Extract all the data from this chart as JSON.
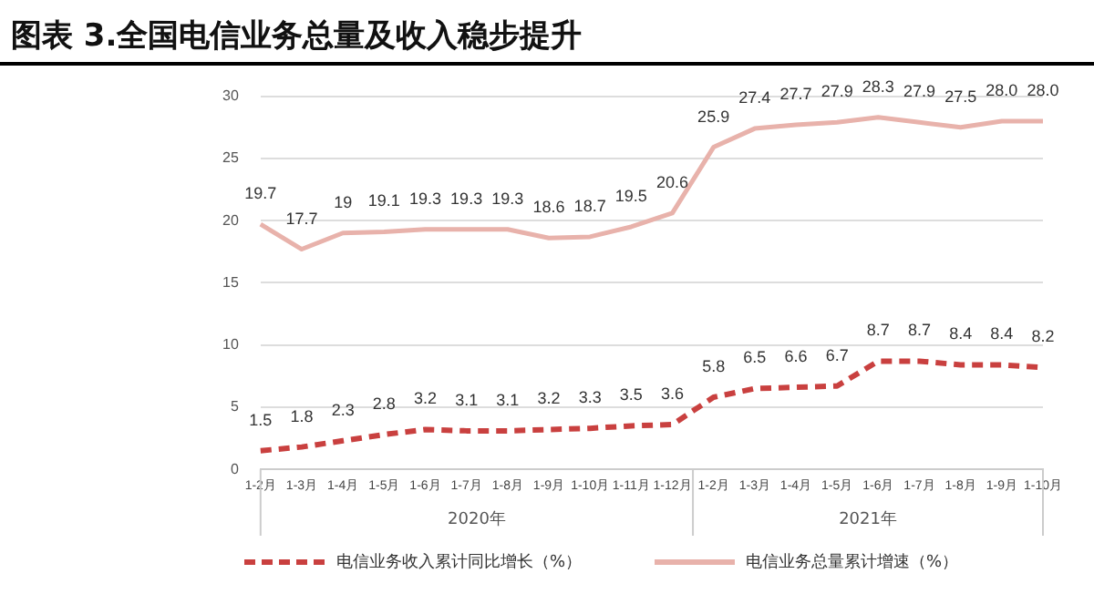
{
  "chart_data": {
    "type": "line",
    "title": "图表 3.全国电信业务总量及收入稳步提升",
    "categories": [
      "1-2月",
      "1-3月",
      "1-4月",
      "1-5月",
      "1-6月",
      "1-7月",
      "1-8月",
      "1-9月",
      "1-10月",
      "1-11月",
      "1-12月",
      "1-2月",
      "1-3月",
      "1-4月",
      "1-5月",
      "1-6月",
      "1-7月",
      "1-8月",
      "1-9月",
      "1-10月"
    ],
    "series": [
      {
        "name": "电信业务收入累计同比增长（%）",
        "color": "#c9403f",
        "line_style": "dashed",
        "values": [
          1.5,
          1.8,
          2.3,
          2.8,
          3.2,
          3.1,
          3.1,
          3.2,
          3.3,
          3.5,
          3.6,
          5.8,
          6.5,
          6.6,
          6.7,
          8.7,
          8.7,
          8.4,
          8.4,
          8.2
        ],
        "value_labels": [
          "1.5",
          "1.8",
          "2.3",
          "2.8",
          "3.2",
          "3.1",
          "3.1",
          "3.2",
          "3.3",
          "3.5",
          "3.6",
          "5.8",
          "6.5",
          "6.6",
          "6.7",
          "8.7",
          "8.7",
          "8.4",
          "8.4",
          "8.2"
        ]
      },
      {
        "name": "电信业务总量累计增速（%）",
        "color": "#e8b2ab",
        "line_style": "solid",
        "values": [
          19.7,
          17.7,
          19,
          19.1,
          19.3,
          19.3,
          19.3,
          18.6,
          18.7,
          19.5,
          20.6,
          25.9,
          27.4,
          27.7,
          27.9,
          28.3,
          27.9,
          27.5,
          28.0,
          28.0
        ],
        "value_labels": [
          "19.7",
          "17.7",
          "19",
          "19.1",
          "19.3",
          "19.3",
          "19.3",
          "18.6",
          "18.7",
          "19.5",
          "20.6",
          "25.9",
          "27.4",
          "27.7",
          "27.9",
          "28.3",
          "27.9",
          "27.5",
          "28.0",
          "28.0"
        ]
      }
    ],
    "ylim": [
      0,
      30
    ],
    "yticks": [
      0,
      5,
      10,
      15,
      20,
      25,
      30
    ],
    "grid": "y",
    "legend": "bottom",
    "marker": "none",
    "annotations": [
      "2020年",
      "2021年"
    ]
  }
}
